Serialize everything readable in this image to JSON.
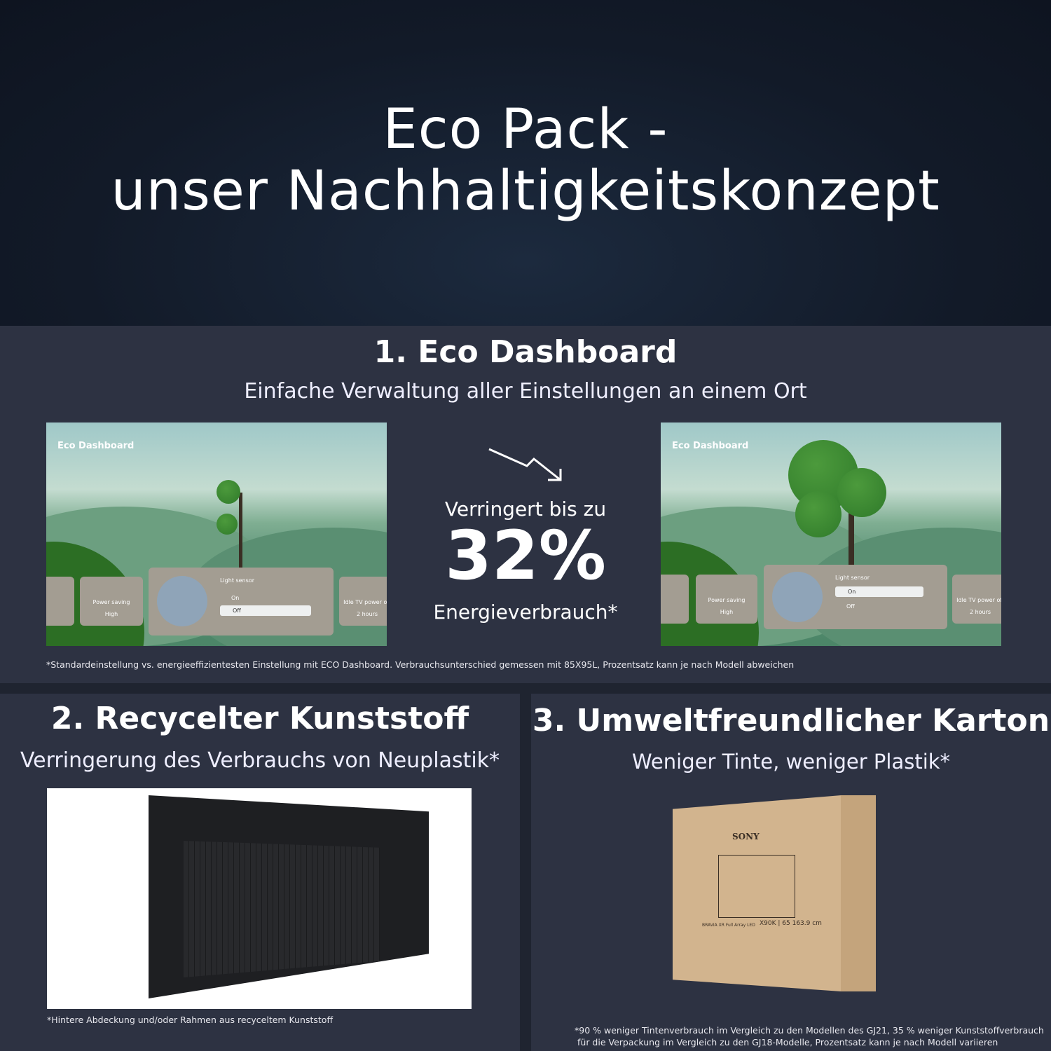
{
  "header": {
    "title_line1": "Eco Pack -",
    "title_line2": "unser Nachhaltigkeitskonzept"
  },
  "eco_dashboard": {
    "title": "1. Eco Dashboard",
    "subtitle": "Einfache Verwaltung aller Einstellungen an einem Ort",
    "screen_label": "Eco Dashboard",
    "power_saving_label": "Power saving",
    "power_saving_value": "High",
    "light_sensor_label": "Light sensor",
    "option_on": "On",
    "option_off": "Off",
    "idle_label": "Idle TV power off",
    "idle_value": "2 hours",
    "before_selected": "Off",
    "after_selected": "On",
    "reduction_text": "Verringert bis zu",
    "reduction_value": "32%",
    "reduction_unit": "Energieverbrauch*",
    "footnote": "*Standardeinstellung vs. energieeffizientesten Einstellung mit ECO Dashboard. Verbrauchsunterschied gemessen mit 85X95L, Prozentsatz kann je nach Modell abweichen"
  },
  "recycled": {
    "title": "2. Recycelter Kunststoff",
    "subtitle": "Verringerung des Verbrauchs von Neuplastik*",
    "footnote": "*Hintere Abdeckung und/oder Rahmen aus recyceltem Kunststoff"
  },
  "carton": {
    "title": "3. Umweltfreundlicher Karton",
    "subtitle": "Weniger Tinte, weniger Plastik*",
    "box_brand": "SONY",
    "box_line": "BRAVIA XR  Full Array LED",
    "box_model": "X90K | 65 163.9 cm",
    "footnote_line1": "*90 % weniger Tintenverbrauch im Vergleich zu den Modellen des GJ21, 35 % weniger Kunststoffverbrauch",
    "footnote_line2": "für die Verpackung im Vergleich zu den GJ18-Modelle, Prozentsatz kann je nach Modell variieren"
  },
  "colors": {
    "background": "#2d3242",
    "hero": "#121a28",
    "carton": "#cfb08a"
  }
}
